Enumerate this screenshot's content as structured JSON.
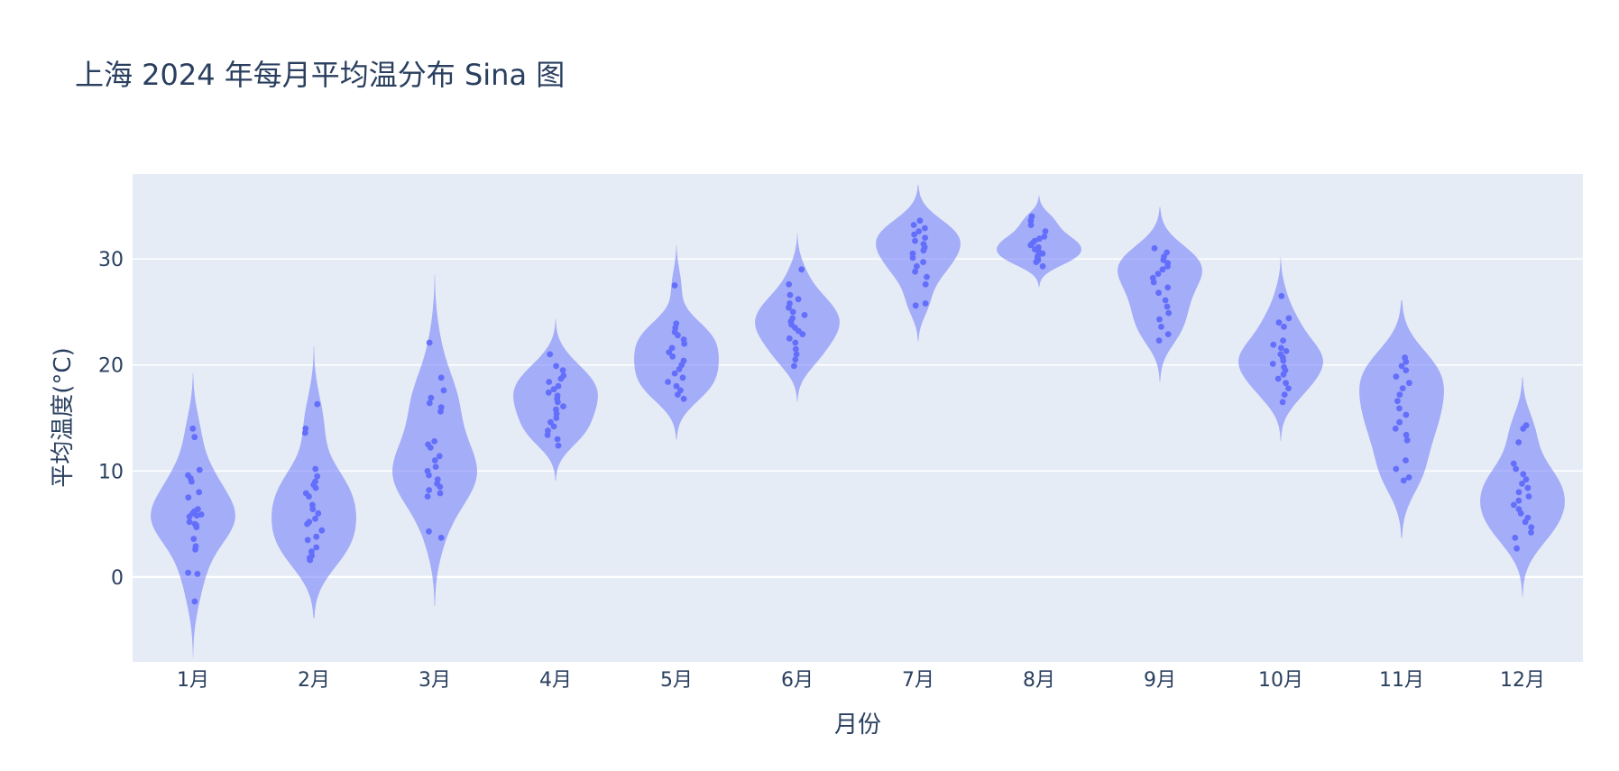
{
  "chart_data": {
    "type": "violin",
    "title": "上海 2024 年每月平均温分布 Sina 图",
    "xlabel": "月份",
    "ylabel": "平均温度(°C)",
    "categories": [
      "1月",
      "2月",
      "3月",
      "4月",
      "5月",
      "6月",
      "7月",
      "8月",
      "9月",
      "10月",
      "11月",
      "12月"
    ],
    "ylim": [
      -8,
      38
    ],
    "yticks": [
      0,
      10,
      20,
      30
    ],
    "grid": true,
    "legend": "none",
    "colors": {
      "violin_fill": "#636efa",
      "point": "#636efa",
      "plot_bg": "#e5ecf6",
      "grid": "#ffffff",
      "text": "#2a3f5f"
    },
    "series": [
      {
        "category": "1月",
        "values": [
          14.0,
          13.2,
          10.1,
          9.6,
          9.3,
          9.0,
          8.0,
          7.5,
          6.4,
          6.2,
          6.0,
          5.9,
          5.8,
          5.7,
          5.2,
          5.0,
          4.9,
          4.7,
          3.6,
          2.9,
          2.6,
          0.4,
          0.3,
          -2.3
        ]
      },
      {
        "category": "2月",
        "values": [
          16.3,
          14.0,
          13.6,
          10.2,
          9.5,
          9.0,
          8.7,
          8.4,
          7.9,
          7.6,
          6.8,
          6.4,
          6.0,
          5.5,
          5.2,
          5.0,
          4.4,
          3.8,
          3.5,
          2.8,
          2.4,
          2.0,
          1.8,
          1.6
        ]
      },
      {
        "category": "3月",
        "values": [
          22.1,
          18.8,
          17.6,
          16.9,
          16.4,
          16.0,
          15.6,
          12.8,
          12.5,
          12.2,
          11.4,
          11.0,
          10.4,
          10.0,
          9.6,
          9.2,
          8.8,
          8.5,
          8.2,
          7.9,
          7.6,
          4.3,
          3.7
        ]
      },
      {
        "category": "4月",
        "values": [
          21.0,
          19.9,
          19.5,
          19.0,
          18.7,
          18.4,
          18.0,
          17.7,
          17.4,
          17.1,
          16.8,
          16.5,
          16.1,
          15.8,
          15.4,
          15.0,
          14.6,
          14.2,
          13.8,
          13.4,
          13.0,
          12.4
        ]
      },
      {
        "category": "5月",
        "values": [
          27.5,
          23.9,
          23.5,
          23.1,
          22.8,
          22.4,
          22.0,
          21.6,
          21.2,
          20.8,
          20.4,
          20.0,
          19.6,
          19.2,
          18.8,
          18.4,
          18.0,
          17.6,
          17.2,
          16.8
        ]
      },
      {
        "category": "6月",
        "values": [
          29.0,
          27.6,
          26.6,
          26.2,
          25.8,
          25.4,
          25.0,
          24.7,
          24.4,
          24.1,
          23.8,
          23.5,
          23.2,
          22.9,
          22.5,
          22.1,
          21.5,
          21.0,
          20.5,
          19.9
        ]
      },
      {
        "category": "7月",
        "values": [
          33.6,
          33.2,
          32.9,
          32.6,
          32.3,
          32.0,
          31.7,
          31.4,
          31.1,
          30.8,
          30.5,
          30.1,
          29.7,
          29.3,
          28.8,
          28.3,
          27.6,
          25.8,
          25.6
        ]
      },
      {
        "category": "8月",
        "values": [
          34.0,
          33.6,
          33.2,
          32.6,
          32.1,
          31.9,
          31.7,
          31.5,
          31.3,
          31.1,
          30.9,
          30.7,
          30.5,
          30.3,
          30.1,
          29.9,
          29.7,
          29.3
        ]
      },
      {
        "category": "9月",
        "values": [
          31.0,
          30.6,
          30.2,
          29.9,
          29.6,
          29.3,
          29.0,
          28.6,
          28.2,
          27.8,
          27.3,
          26.8,
          26.1,
          25.5,
          24.9,
          24.3,
          23.6,
          22.9,
          22.3
        ]
      },
      {
        "category": "10月",
        "values": [
          26.5,
          24.4,
          24.0,
          23.6,
          22.3,
          21.9,
          21.6,
          21.3,
          21.0,
          20.7,
          20.4,
          20.1,
          19.8,
          19.5,
          19.1,
          18.7,
          18.3,
          17.8,
          17.2,
          16.5
        ]
      },
      {
        "category": "11月",
        "values": [
          20.7,
          20.3,
          19.9,
          19.5,
          18.9,
          18.3,
          17.8,
          17.2,
          16.6,
          15.9,
          15.3,
          14.6,
          14.0,
          13.4,
          12.9,
          11.0,
          10.2,
          9.4,
          9.1
        ]
      },
      {
        "category": "12月",
        "values": [
          14.3,
          14.0,
          12.7,
          10.7,
          10.2,
          9.7,
          9.2,
          8.8,
          8.4,
          8.0,
          7.6,
          7.2,
          6.8,
          6.4,
          6.0,
          5.6,
          5.2,
          4.7,
          4.2,
          3.7,
          2.7
        ]
      }
    ]
  }
}
